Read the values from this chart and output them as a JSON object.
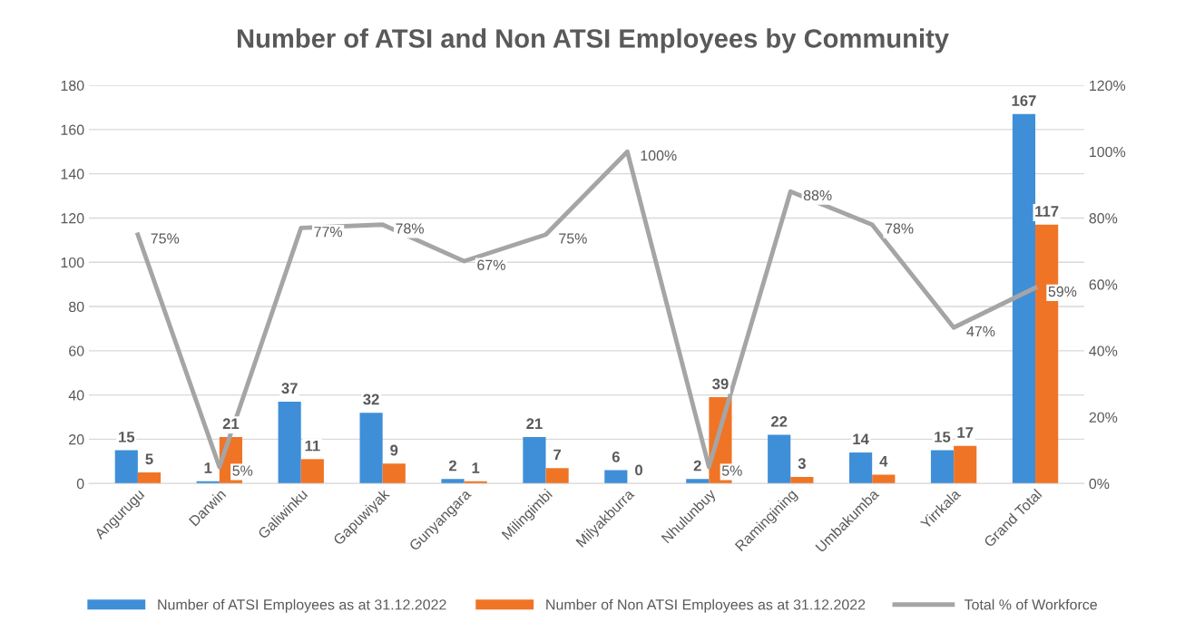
{
  "chart_data": {
    "type": "bar",
    "title": "Number of ATSI and Non ATSI Employees by Community",
    "categories": [
      "Angurugu",
      "Darwin",
      "Galiwinku",
      "Gapuwiyak",
      "Gunyangara",
      "Milingimbi",
      "Milyakburra",
      "Nhulunbuy",
      "Ramingining",
      "Umbakumba",
      "Yirrkala",
      "Grand Total"
    ],
    "series": [
      {
        "name": "Number of ATSI Employees as at 31.12.2022",
        "color": "#3f8fd8",
        "values": [
          15,
          1,
          37,
          32,
          2,
          21,
          6,
          2,
          22,
          14,
          15,
          167
        ],
        "data_labels": true
      },
      {
        "name": "Number of Non ATSI Employees as at 31.12.2022",
        "color": "#f07426",
        "values": [
          5,
          21,
          11,
          9,
          1,
          7,
          0,
          39,
          3,
          4,
          17,
          117
        ],
        "data_labels": true
      },
      {
        "name": "Total % of Workforce",
        "type": "line",
        "axis": "y2",
        "color": "#a5a5a5",
        "values": [
          75,
          5,
          77,
          78,
          67,
          75,
          100,
          5,
          88,
          78,
          47,
          59
        ],
        "value_labels": [
          "75%",
          "5%",
          "77%",
          "78%",
          "67%",
          "75%",
          "100%",
          "5%",
          "88%",
          "78%",
          "47%",
          "59%"
        ]
      }
    ],
    "ylim": [
      0,
      180
    ],
    "yticks": [
      0,
      20,
      40,
      60,
      80,
      100,
      120,
      140,
      160,
      180
    ],
    "y2lim": [
      0,
      120
    ],
    "y2ticks": [
      {
        "value": 0,
        "label": "0%"
      },
      {
        "value": 20,
        "label": "20%"
      },
      {
        "value": 40,
        "label": "40%"
      },
      {
        "value": 60,
        "label": "60%"
      },
      {
        "value": 80,
        "label": "80%"
      },
      {
        "value": 100,
        "label": "100%"
      },
      {
        "value": 120,
        "label": "120%"
      }
    ],
    "grid": "y",
    "legend": "bottom",
    "marker": "none",
    "line_style": "solid"
  }
}
